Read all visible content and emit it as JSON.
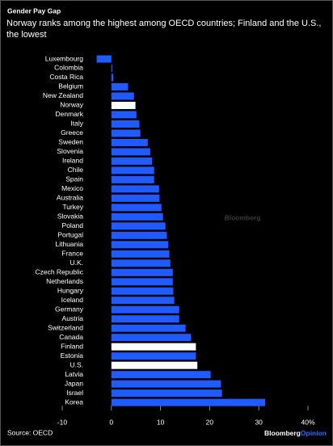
{
  "chart_data": {
    "type": "barh",
    "title": "Gender Pay Gap",
    "subtitle": "Norway ranks among the highest among OECD countries; Finland and the U.S., the lowest",
    "categories": [
      "Luxembourg",
      "Colombia",
      "Costa Rica",
      "Belgium",
      "New Zealand",
      "Norway",
      "Denmark",
      "Italy",
      "Greece",
      "Sweden",
      "Slovenia",
      "Ireland",
      "Chile",
      "Spain",
      "Mexico",
      "Australia",
      "Turkey",
      "Slovakia",
      "Poland",
      "Portugal",
      "Lithuania",
      "France",
      "U.K.",
      "Czech Republic",
      "Netherlands",
      "Hungary",
      "Iceland",
      "Germany",
      "Austria",
      "Switzerland",
      "Canada",
      "Finland",
      "Estonia",
      "U.S.",
      "Latvia",
      "Japan",
      "Israel",
      "Korea"
    ],
    "values": [
      -3.0,
      0.2,
      0.4,
      3.4,
      4.6,
      4.9,
      5.1,
      5.7,
      5.9,
      7.4,
      7.9,
      8.3,
      8.7,
      8.7,
      9.7,
      9.8,
      10.2,
      10.5,
      11.0,
      11.3,
      11.6,
      11.8,
      12.0,
      12.5,
      12.5,
      12.6,
      12.8,
      13.8,
      13.8,
      15.1,
      16.2,
      17.2,
      17.2,
      17.5,
      20.2,
      22.3,
      22.5,
      31.3
    ],
    "colors": [
      "#1f5bff",
      "#1f5bff",
      "#1f5bff",
      "#1f5bff",
      "#1f5bff",
      "#ffffff",
      "#1f5bff",
      "#1f5bff",
      "#1f5bff",
      "#1f5bff",
      "#1f5bff",
      "#1f5bff",
      "#1f5bff",
      "#1f5bff",
      "#1f5bff",
      "#1f5bff",
      "#1f5bff",
      "#1f5bff",
      "#1f5bff",
      "#1f5bff",
      "#1f5bff",
      "#1f5bff",
      "#1f5bff",
      "#1f5bff",
      "#1f5bff",
      "#1f5bff",
      "#1f5bff",
      "#1f5bff",
      "#1f5bff",
      "#1f5bff",
      "#1f5bff",
      "#ffffff",
      "#1f5bff",
      "#ffffff",
      "#1f5bff",
      "#1f5bff",
      "#1f5bff",
      "#1f5bff"
    ],
    "xlim": [
      -10,
      40
    ],
    "xticks": [
      -10,
      0,
      10,
      20,
      30,
      {
        "value": 40,
        "label": "40%"
      }
    ],
    "grid": false,
    "source": "Source: OECD",
    "watermark": "Bloomberg",
    "logo": {
      "brand": "Bloomberg",
      "product": "Opinion"
    }
  }
}
